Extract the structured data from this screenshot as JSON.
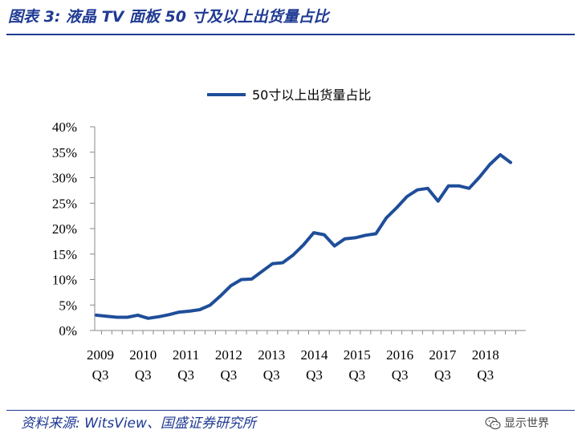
{
  "header": {
    "title": "图表 3: 液晶 TV 面板 50 寸及以上出货量占比"
  },
  "footer": {
    "source": "资料来源: WitsView、国盛证券研究所",
    "watermark": "显示世界",
    "watermark_icon": "wechat-icon"
  },
  "colors": {
    "accent": "#1f3a93",
    "series": "#1f4e99"
  },
  "chart_data": {
    "type": "line",
    "title": "",
    "xlabel": "",
    "ylabel": "",
    "ylim": [
      0,
      40
    ],
    "y_ticks": [
      "0%",
      "5%",
      "10%",
      "15%",
      "20%",
      "25%",
      "30%",
      "35%",
      "40%"
    ],
    "x_tick_labels": [
      {
        "year": "2009",
        "q": "Q3"
      },
      {
        "year": "2010",
        "q": "Q3"
      },
      {
        "year": "2011",
        "q": "Q3"
      },
      {
        "year": "2012",
        "q": "Q3"
      },
      {
        "year": "2013",
        "q": "Q3"
      },
      {
        "year": "2014",
        "q": "Q3"
      },
      {
        "year": "2015",
        "q": "Q3"
      },
      {
        "year": "2016",
        "q": "Q3"
      },
      {
        "year": "2017",
        "q": "Q3"
      },
      {
        "year": "2018",
        "q": "Q3"
      }
    ],
    "grid": false,
    "legend": "top-center",
    "series": [
      {
        "name": "50寸以上出货量占比",
        "values": [
          3.0,
          2.8,
          2.6,
          2.6,
          3.0,
          2.4,
          2.7,
          3.1,
          3.6,
          3.8,
          4.1,
          5.0,
          6.8,
          8.8,
          10.0,
          10.1,
          11.6,
          13.1,
          13.3,
          14.8,
          16.8,
          19.2,
          18.8,
          16.6,
          18.0,
          18.2,
          18.7,
          19.0,
          22.1,
          24.1,
          26.3,
          27.6,
          27.9,
          25.4,
          28.4,
          28.4,
          27.9,
          30.1,
          32.6,
          34.5,
          33.0
        ]
      }
    ]
  }
}
